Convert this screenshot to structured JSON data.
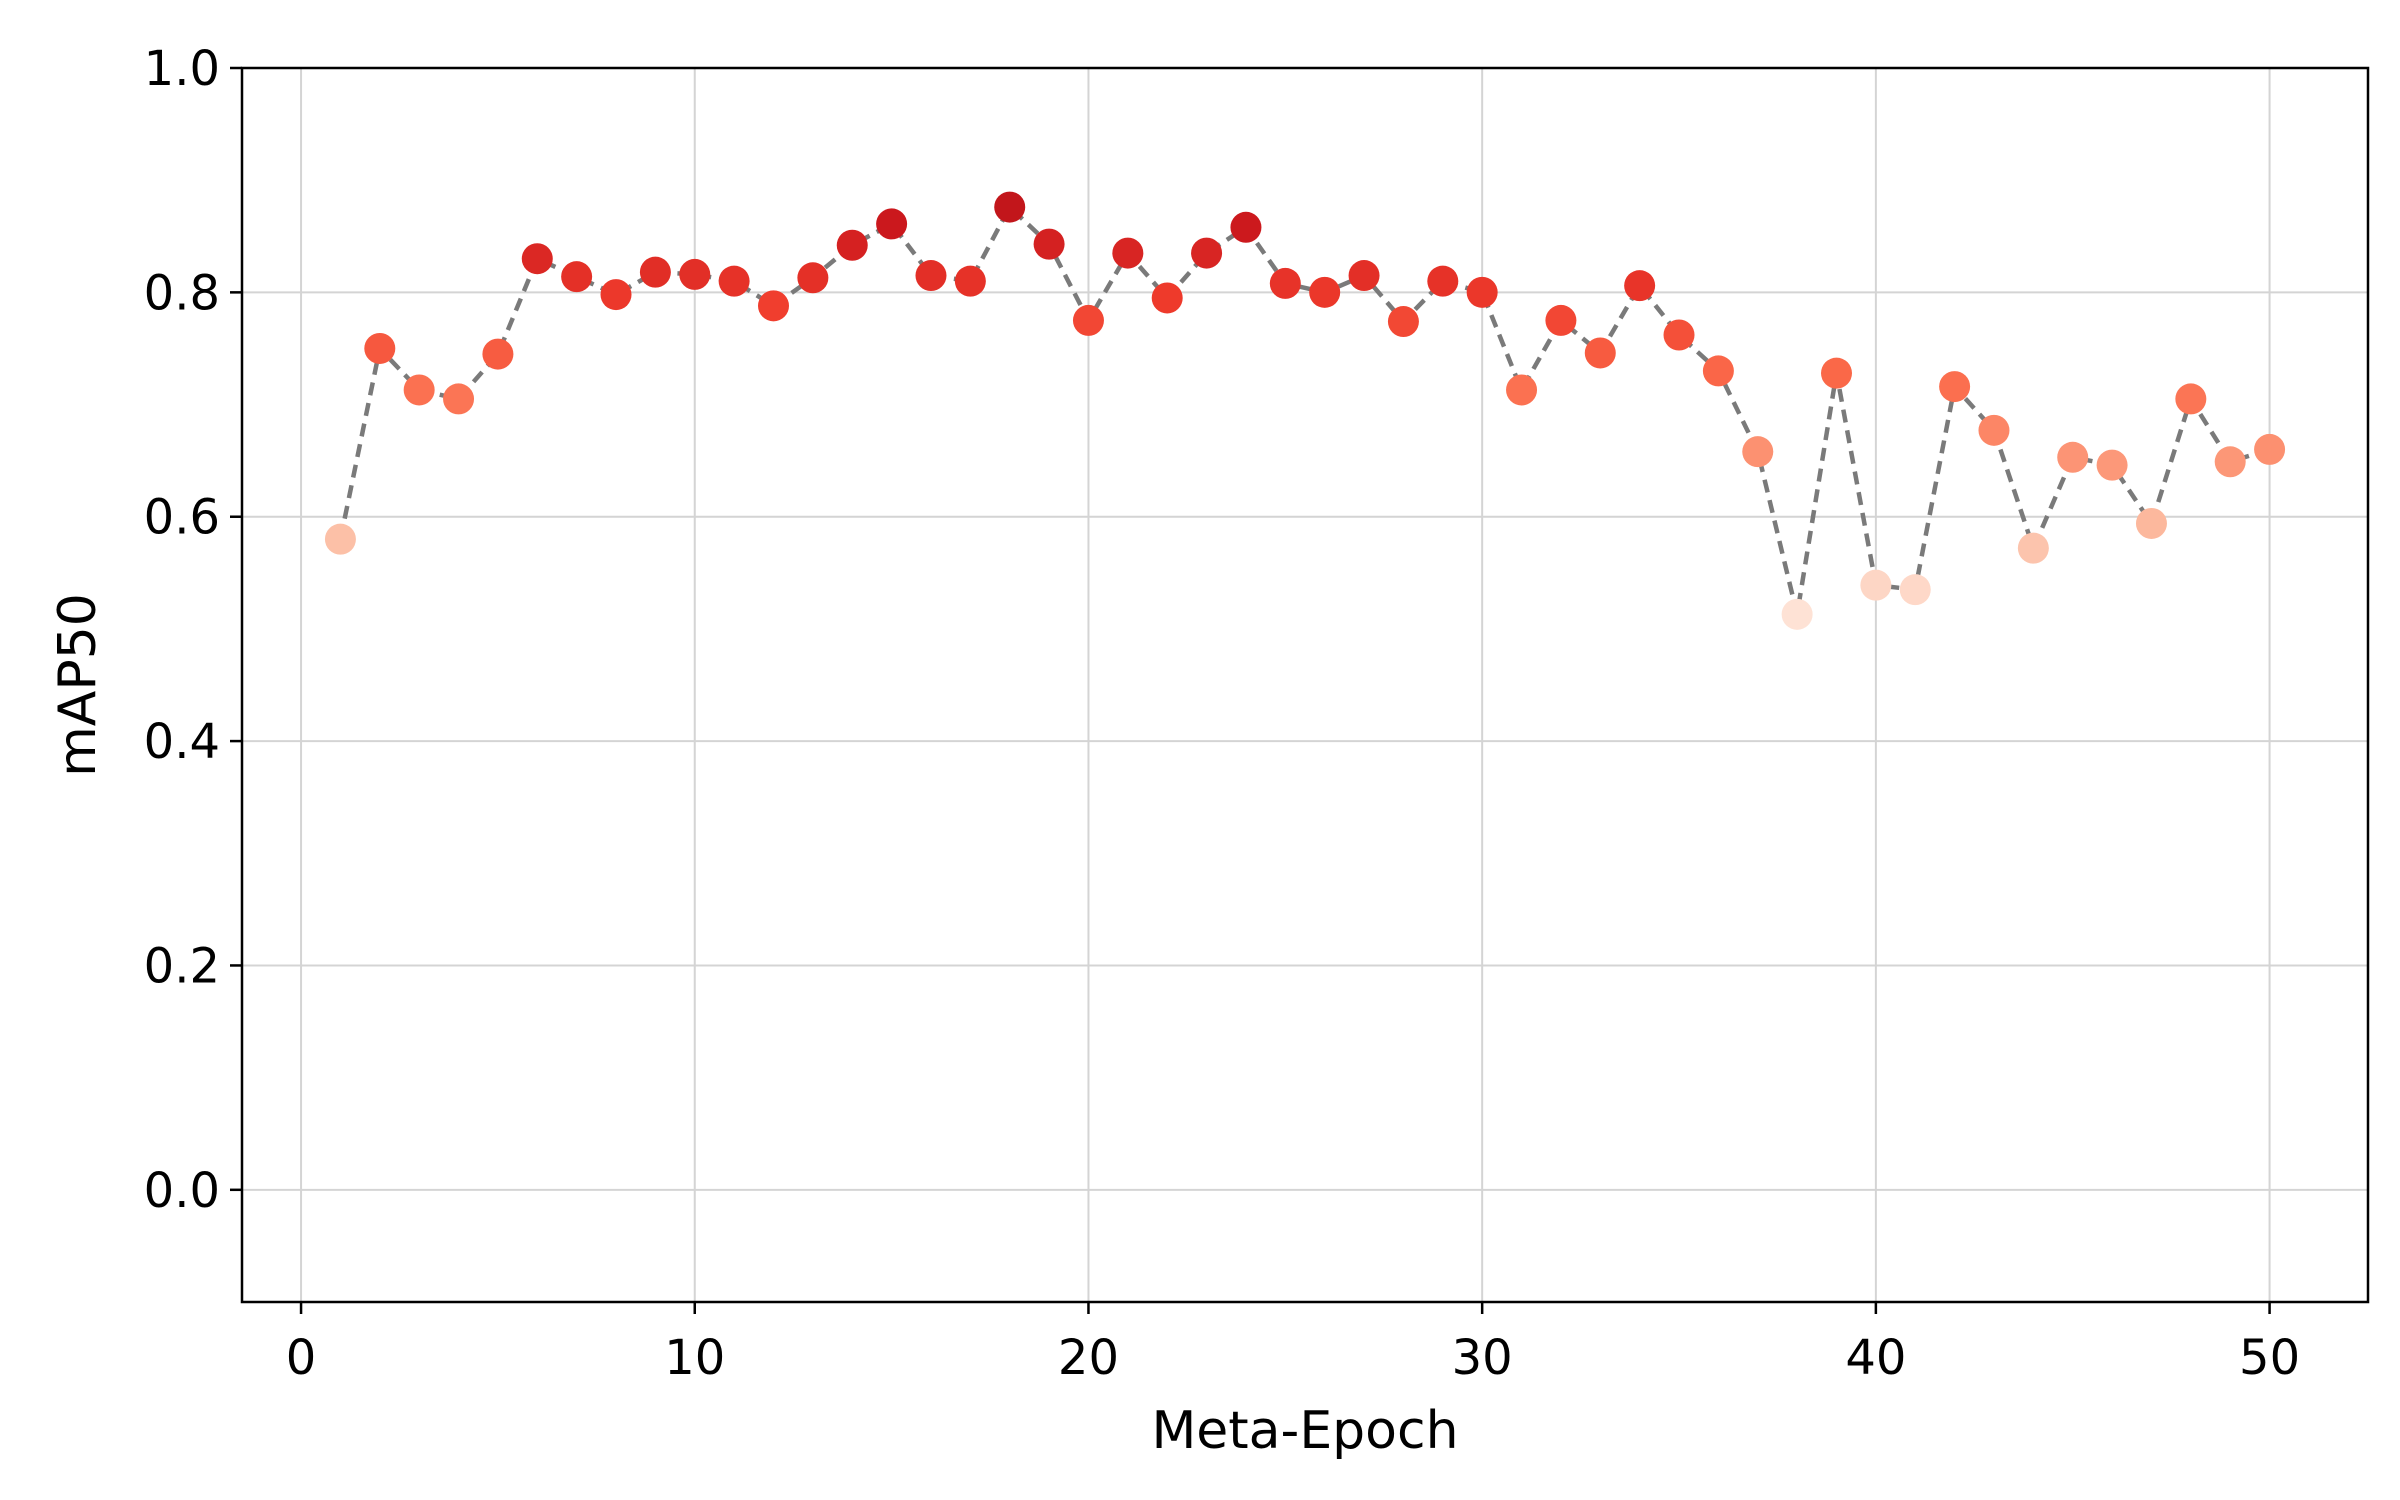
{
  "chart_data": {
    "type": "scatter",
    "title": "",
    "xlabel": "Meta-Epoch",
    "ylabel": "mAP50",
    "xlim": [
      -1.5,
      52.5
    ],
    "ylim": [
      -0.1,
      1.0
    ],
    "x_ticks": [
      0,
      10,
      20,
      30,
      40,
      50
    ],
    "y_ticks": [
      0.0,
      0.2,
      0.4,
      0.6,
      0.8,
      1.0
    ],
    "x_tick_labels": [
      "0",
      "10",
      "20",
      "30",
      "40",
      "50"
    ],
    "y_tick_labels": [
      "0.0",
      "0.2",
      "0.4",
      "0.6",
      "0.8",
      "1.0"
    ],
    "grid": true,
    "legend": "none",
    "line_style": "dashed",
    "line_color": "#7a7a7a",
    "colormap": "Reds (point color scaled by mAP50)",
    "series": [
      {
        "x": [
          1,
          2,
          3,
          4,
          5,
          6,
          7,
          8,
          9,
          10,
          11,
          12,
          13,
          14,
          15,
          16,
          17,
          18,
          19,
          20,
          21,
          22,
          23,
          24,
          25,
          26,
          27,
          28,
          29,
          30,
          31,
          32,
          33,
          34,
          35,
          36,
          37,
          38,
          39,
          40,
          41,
          42,
          43,
          44,
          45,
          46,
          47,
          48,
          49,
          50
        ],
        "y": [
          0.58,
          0.75,
          0.713,
          0.705,
          0.745,
          0.83,
          0.814,
          0.798,
          0.818,
          0.816,
          0.81,
          0.788,
          0.813,
          0.842,
          0.861,
          0.815,
          0.81,
          0.876,
          0.843,
          0.775,
          0.835,
          0.795,
          0.835,
          0.858,
          0.808,
          0.8,
          0.815,
          0.774,
          0.81,
          0.8,
          0.713,
          0.775,
          0.746,
          0.806,
          0.762,
          0.73,
          0.658,
          0.513,
          0.728,
          0.539,
          0.535,
          0.716,
          0.677,
          0.572,
          0.653,
          0.646,
          0.594,
          0.705,
          0.649,
          0.66
        ]
      }
    ]
  }
}
